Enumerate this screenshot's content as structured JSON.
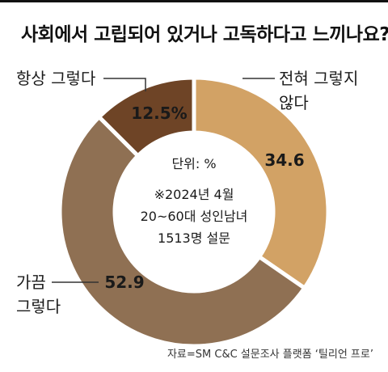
{
  "title": "사회에서 고립되어 있거나 고독하다고 느끼나요?",
  "source": "자료=SM C&C 설문조사 플랫폼 ‘틸리언 프로’",
  "center_text": [
    "단위: %",
    "※2024년 4월",
    "20~60대 성인남녀",
    "1513명 설문"
  ],
  "chart_data": {
    "type": "pie",
    "variant": "donut",
    "unit": "%",
    "categories": [
      "전혀 그렇지 않다",
      "가끔 그렇다",
      "항상 그렇다"
    ],
    "values": [
      34.6,
      52.9,
      12.5
    ],
    "value_labels": [
      "34.6",
      "52.9",
      "12.5%"
    ],
    "colors": [
      "#D2A265",
      "#8F7053",
      "#6E4426"
    ],
    "label_lines": [
      [
        "전혀 그렇지",
        "않다"
      ],
      [
        "가끔",
        "그렇다"
      ],
      [
        "항상 그렇다"
      ]
    ],
    "start_angle_deg": 0,
    "direction": "clockwise"
  }
}
